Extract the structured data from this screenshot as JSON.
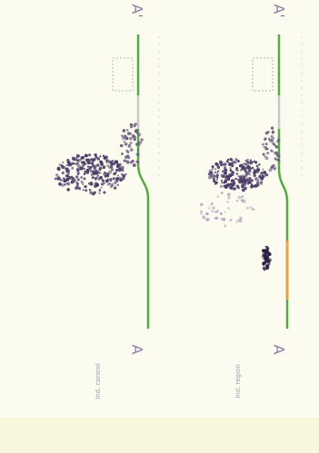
{
  "panels": [
    {
      "start_label": "A",
      "end_label": "A'",
      "caption": "Ind. control"
    },
    {
      "start_label": "A",
      "end_label": "A'",
      "caption": "Ind. region"
    }
  ]
}
